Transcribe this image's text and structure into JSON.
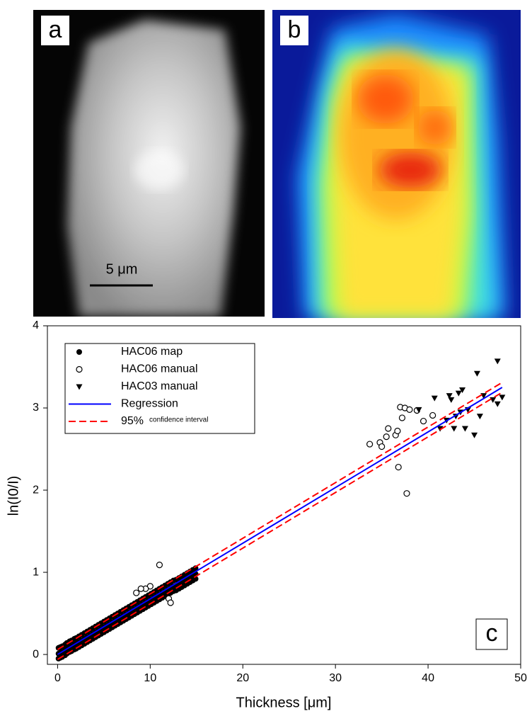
{
  "panels": [
    {
      "label": "a",
      "scale_bar": "5 μm"
    },
    {
      "label": "b"
    }
  ],
  "chart_data": {
    "type": "scatter",
    "panel_label": "c",
    "x_label": "Thickness [μm]",
    "y_label": "ln(I0/I)",
    "xlim": [
      -1.1,
      50
    ],
    "ylim": [
      -0.12,
      4
    ],
    "xticks": [
      0,
      10,
      20,
      30,
      40,
      50
    ],
    "yticks": [
      0,
      1,
      2,
      3,
      4
    ],
    "grid": false,
    "legend": "upper left",
    "series": [
      {
        "name": "HAC06 map",
        "kind": "scatter",
        "marker": "filled-circle",
        "color": "#000000",
        "x": [
          0.1,
          0.3,
          0.5,
          0.8,
          1.0,
          1.3,
          1.5,
          1.8,
          2.0,
          2.3,
          2.6,
          2.9,
          3.2,
          3.5,
          3.8,
          4.1,
          4.4,
          4.7,
          5.0,
          5.3,
          5.6,
          5.9,
          6.2,
          6.5,
          6.8,
          7.1,
          7.4,
          7.7,
          8.0,
          8.3,
          8.6,
          8.9,
          9.2,
          9.5,
          9.8,
          10.1,
          10.4,
          10.7,
          11.0,
          11.3,
          11.6,
          11.9,
          12.2,
          12.5,
          12.8,
          13.1,
          13.4,
          13.7,
          14.0,
          14.3,
          14.6,
          14.9,
          0.1,
          0.3,
          0.5,
          0.8,
          1.0,
          1.3,
          1.5,
          1.8,
          2.0,
          2.3,
          2.6,
          2.9,
          3.2,
          3.5,
          3.8,
          4.1,
          4.4,
          4.7,
          5.0,
          5.3,
          5.6,
          5.9,
          6.2,
          6.5,
          6.8,
          7.1,
          7.4,
          7.7,
          8.0,
          8.3,
          8.6,
          8.9,
          9.2,
          9.5,
          9.8,
          10.1,
          10.4,
          10.7,
          11.0,
          11.3,
          11.6,
          11.9,
          12.2,
          12.5,
          12.8,
          13.1,
          13.4,
          13.7,
          14.0,
          14.3,
          14.6,
          14.9,
          0.1,
          0.3,
          0.5,
          0.8,
          1.0,
          1.3,
          1.5,
          1.8,
          2.0,
          2.3,
          2.6,
          2.9,
          3.2,
          3.5,
          3.8,
          4.1,
          4.4,
          4.7,
          5.0,
          5.3,
          5.6,
          5.9,
          6.2,
          6.5,
          6.8,
          7.1,
          7.4,
          7.7,
          8.0,
          8.3,
          8.6,
          8.9,
          9.2,
          9.5,
          9.8,
          10.1,
          10.4,
          10.7,
          11.0,
          11.3,
          11.6,
          11.9,
          12.2,
          12.5,
          12.8,
          13.1,
          13.4,
          13.7,
          14.0,
          14.3,
          14.6,
          14.9
        ],
        "values": [
          0.01,
          0.02,
          0.03,
          0.05,
          0.07,
          0.09,
          0.1,
          0.12,
          0.13,
          0.15,
          0.17,
          0.19,
          0.21,
          0.23,
          0.25,
          0.27,
          0.29,
          0.31,
          0.33,
          0.35,
          0.37,
          0.39,
          0.41,
          0.43,
          0.45,
          0.47,
          0.49,
          0.51,
          0.53,
          0.55,
          0.57,
          0.59,
          0.61,
          0.63,
          0.65,
          0.67,
          0.69,
          0.71,
          0.73,
          0.75,
          0.77,
          0.79,
          0.81,
          0.83,
          0.84,
          0.86,
          0.88,
          0.9,
          0.92,
          0.94,
          0.96,
          0.98,
          0.08,
          0.09,
          0.1,
          0.12,
          0.14,
          0.16,
          0.17,
          0.19,
          0.2,
          0.22,
          0.24,
          0.26,
          0.28,
          0.3,
          0.32,
          0.34,
          0.36,
          0.38,
          0.4,
          0.42,
          0.44,
          0.46,
          0.48,
          0.5,
          0.52,
          0.54,
          0.56,
          0.58,
          0.6,
          0.62,
          0.64,
          0.66,
          0.68,
          0.7,
          0.72,
          0.74,
          0.76,
          0.78,
          0.8,
          0.82,
          0.84,
          0.86,
          0.88,
          0.9,
          0.91,
          0.93,
          0.95,
          0.97,
          0.99,
          1.01,
          1.03,
          1.05,
          -0.05,
          -0.04,
          -0.03,
          -0.01,
          0.01,
          0.03,
          0.04,
          0.06,
          0.07,
          0.09,
          0.11,
          0.13,
          0.15,
          0.17,
          0.19,
          0.21,
          0.23,
          0.25,
          0.27,
          0.29,
          0.31,
          0.33,
          0.35,
          0.37,
          0.39,
          0.41,
          0.43,
          0.45,
          0.47,
          0.49,
          0.51,
          0.53,
          0.55,
          0.57,
          0.59,
          0.61,
          0.63,
          0.65,
          0.67,
          0.69,
          0.71,
          0.73,
          0.75,
          0.77,
          0.78,
          0.8,
          0.82,
          0.84,
          0.86,
          0.88,
          0.9,
          0.92
        ]
      },
      {
        "name": "HAC06 manual",
        "kind": "scatter",
        "marker": "open-circle",
        "color": "#000000",
        "x": [
          33.7,
          34.8,
          35.0,
          35.5,
          35.7,
          36.5,
          36.7,
          36.8,
          37.0,
          37.2,
          37.5,
          37.7,
          38.0,
          38.8,
          39.5,
          40.5,
          10.0,
          9.5,
          11.0,
          12.0,
          12.2,
          8.5,
          9.0
        ],
        "values": [
          2.56,
          2.58,
          2.53,
          2.65,
          2.75,
          2.67,
          2.72,
          2.28,
          3.01,
          2.88,
          3.0,
          1.96,
          2.98,
          2.97,
          2.84,
          2.91,
          0.83,
          0.8,
          1.09,
          0.68,
          0.63,
          0.75,
          0.8
        ]
      },
      {
        "name": "HAC03 manual",
        "kind": "scatter",
        "marker": "triangle-down",
        "color": "#000000",
        "x": [
          39.0,
          40.7,
          41.3,
          42.0,
          42.5,
          42.8,
          43.3,
          43.5,
          43.7,
          44.0,
          44.3,
          45.0,
          45.3,
          45.6,
          46.0,
          47.0,
          47.5,
          47.5,
          48.0,
          42.3,
          43.0
        ],
        "values": [
          2.98,
          3.12,
          2.75,
          2.85,
          3.1,
          2.75,
          3.18,
          2.95,
          3.22,
          2.75,
          2.98,
          2.67,
          3.42,
          2.9,
          3.15,
          3.1,
          3.57,
          3.05,
          3.13,
          3.15,
          2.9
        ]
      },
      {
        "name": "Regression",
        "kind": "line",
        "color": "#0000ff",
        "dashed": false,
        "x": [
          0,
          48
        ],
        "values": [
          0.0,
          3.25
        ]
      },
      {
        "name": "95%",
        "name_suffix": "confidence interval",
        "kind": "line",
        "color": "#ff0000",
        "dashed": true,
        "x": [
          0,
          48
        ],
        "values": [
          0.06,
          3.31
        ]
      },
      {
        "kind": "line",
        "color": "#ff0000",
        "dashed": true,
        "x": [
          0,
          48
        ],
        "values": [
          -0.06,
          3.19
        ]
      }
    ]
  }
}
